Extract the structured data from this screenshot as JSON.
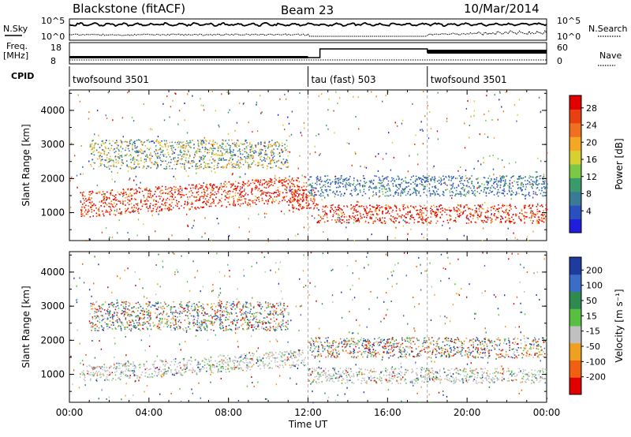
{
  "header": {
    "site": "Blackstone (fitACF)",
    "beam": "Beam 23",
    "date": "10/Mar/2014"
  },
  "strip": {
    "nsky_label": "N.Sky",
    "nsky_ticks": [
      "10^5",
      "10^0"
    ],
    "nsearch_label": "N.Search",
    "nsearch_ticks": [
      "10^5",
      "10^0"
    ],
    "freq_label": "Freq.",
    "freq_unit": "[MHz]",
    "freq_ticks": [
      "18",
      "8"
    ],
    "nave_label": "Nave",
    "nave_ticks": [
      "60",
      "0"
    ],
    "cpid_label": "CPID",
    "modes": [
      {
        "name": "twofsound 3501",
        "start": 0,
        "end": 12
      },
      {
        "name": "tau (fast) 503",
        "start": 12,
        "end": 18
      },
      {
        "name": "twofsound 3501",
        "start": 18,
        "end": 24
      }
    ]
  },
  "chart_data": [
    {
      "type": "heatmap",
      "panel": "power",
      "xlabel": "",
      "ylabel": "Slant Range [km]",
      "xlim": [
        0,
        24
      ],
      "ylim": [
        180,
        4600
      ],
      "y_ticks": [
        "1000",
        "2000",
        "3000",
        "4000"
      ],
      "colorbar": {
        "label": "Power [dB]",
        "ticks": [
          "4",
          "8",
          "12",
          "16",
          "20",
          "24",
          "28"
        ],
        "colors": [
          "#1e1edc",
          "#2a4fbf",
          "#3a7a96",
          "#3a9a6c",
          "#7ac843",
          "#d8d030",
          "#f5a623",
          "#f07020",
          "#e84010",
          "#e00000"
        ]
      },
      "bands": [
        {
          "t": [
            0.5,
            11.9
          ],
          "range": [
            950,
            1700
          ],
          "level": "high"
        },
        {
          "t": [
            1.0,
            11.0
          ],
          "range": [
            2300,
            3150
          ],
          "level": "medium-high"
        },
        {
          "t": [
            11.0,
            12.4
          ],
          "range": [
            700,
            1300
          ],
          "level": "high"
        },
        {
          "t": [
            12.4,
            24.0
          ],
          "range": [
            700,
            1250
          ],
          "level": "high"
        },
        {
          "t": [
            12.0,
            24.0
          ],
          "range": [
            1500,
            2100
          ],
          "level": "low"
        }
      ]
    },
    {
      "type": "heatmap",
      "panel": "velocity",
      "xlabel": "Time UT",
      "ylabel": "Slant Range [km]",
      "xlim": [
        0,
        24
      ],
      "ylim": [
        180,
        4600
      ],
      "x_ticks": [
        "00:00",
        "04:00",
        "08:00",
        "12:00",
        "16:00",
        "20:00",
        "00:00"
      ],
      "y_ticks": [
        "1000",
        "2000",
        "3000",
        "4000"
      ],
      "colorbar": {
        "label": "Velocity [m s⁻¹]",
        "ticks": [
          "200",
          "100",
          "50",
          "15",
          "-15",
          "-50",
          "-100",
          "-200"
        ],
        "colors": [
          "#1e3ca0",
          "#3a6cc8",
          "#2f8a4f",
          "#58c040",
          "#c0c0c0",
          "#f0a020",
          "#f06010",
          "#e00000"
        ]
      },
      "bands": [
        {
          "t": [
            0.5,
            11.9
          ],
          "range": [
            850,
            1350
          ],
          "level": "ground-scatter"
        },
        {
          "t": [
            1.0,
            11.0
          ],
          "range": [
            2300,
            3150
          ],
          "level": "mixed"
        },
        {
          "t": [
            12.0,
            24.0
          ],
          "range": [
            750,
            1200
          ],
          "level": "ground-scatter"
        },
        {
          "t": [
            12.0,
            24.0
          ],
          "range": [
            1500,
            2100
          ],
          "level": "mixed"
        }
      ]
    }
  ]
}
